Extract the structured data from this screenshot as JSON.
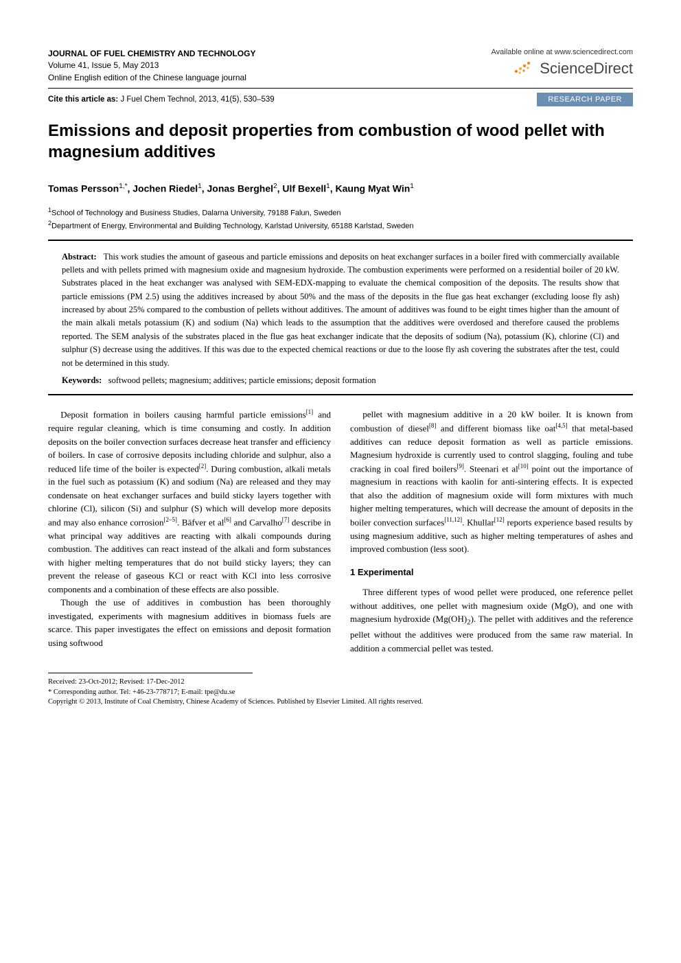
{
  "header": {
    "journal_title": "JOURNAL OF FUEL CHEMISTRY AND TECHNOLOGY",
    "volume_issue": "Volume 41, Issue 5, May 2013",
    "edition": "Online English edition of the Chinese language journal",
    "available": "Available online at www.sciencedirect.com",
    "sd_brand": "ScienceDirect",
    "cite_label": "Cite this article as:",
    "cite_text": " J Fuel Chem Technol, 2013, 41(5), 530–539",
    "badge": "RESEARCH PAPER"
  },
  "article": {
    "title": "Emissions and deposit properties from combustion of wood pellet with magnesium additives",
    "authors_html": "Tomas Persson<sup>1,*</sup>, Jochen Riedel<sup>1</sup>, Jonas Berghel<sup>2</sup>, Ulf Bexell<sup>1</sup>, Kaung Myat Win<sup>1</sup>",
    "affiliations": [
      {
        "num": "1",
        "text": "School of Technology and Business Studies, Dalarna University, 79188 Falun, Sweden"
      },
      {
        "num": "2",
        "text": "Department of Energy, Environmental and Building Technology, Karlstad University, 65188 Karlstad, Sweden"
      }
    ]
  },
  "abstract": {
    "label": "Abstract:",
    "text": "This work studies the amount of gaseous and particle emissions and deposits on heat exchanger surfaces in a boiler fired with commercially available pellets and with pellets primed with magnesium oxide and magnesium hydroxide. The combustion experiments were performed on a residential boiler of 20 kW. Substrates placed in the heat exchanger was analysed with SEM-EDX-mapping to evaluate the chemical composition of the deposits. The results show that particle emissions (PM 2.5) using the additives increased by about 50% and the mass of the deposits in the flue gas heat exchanger (excluding loose fly ash) increased by about 25% compared to the combustion of pellets without additives. The amount of additives was found to be eight times higher than the amount of the main alkali metals potassium (K) and sodium (Na) which leads to the assumption that the additives were overdosed and therefore caused the problems reported. The SEM analysis of the substrates placed in the flue gas heat exchanger indicate that the deposits of sodium (Na), potassium (K), chlorine (Cl) and sulphur (S) decrease using the additives. If this was due to the expected chemical reactions or due to the loose fly ash covering the substrates after the test, could not be determined in this study.",
    "kw_label": "Keywords:",
    "kw_text": "softwood pellets; magnesium; additives; particle emissions; deposit formation"
  },
  "body": {
    "left": {
      "p1": "Deposit formation in boilers causing harmful particle emissions[1] and require regular cleaning, which is time consuming and costly. In addition deposits on the boiler convection surfaces decrease heat transfer and efficiency of boilers. In case of corrosive deposits including chloride and sulphur, also a reduced life time of the boiler is expected[2]. During combustion, alkali metals in the fuel such as potassium (K) and sodium (Na) are released and they may condensate on heat exchanger surfaces and build sticky layers together with chlorine (Cl), silicon (Si) and sulphur (S) which will develop more deposits and may also enhance corrosion[2–5]. Bäfver et al[6] and Carvalho[7] describe in what principal way additives are reacting with alkali compounds during combustion. The additives can react instead of the alkali and form substances with higher melting temperatures that do not build sticky layers; they can prevent the release of gaseous KCl or react with KCl into less corrosive components and a combination of these effects are also possible.",
      "p2": "Though the use of additives in combustion has been thoroughly investigated, experiments with magnesium additives in biomass fuels are scarce. This paper investigates the effect on emissions and deposit formation using softwood"
    },
    "right": {
      "p1": "pellet with magnesium additive in a 20 kW boiler. It is known from combustion of diesel[8] and different biomass like oat[4,5] that metal-based additives can reduce deposit formation as well as particle emissions. Magnesium hydroxide is currently used to control slagging, fouling and tube cracking in coal fired boilers[9]. Steenari et al[10] point out the importance of magnesium in reactions with kaolin for anti-sintering effects. It is expected that also the addition of magnesium oxide will form mixtures with much higher melting temperatures, which will decrease the amount of deposits in the boiler convection surfaces[11,12]. Khullar[12] reports experience based results by using magnesium additive, such as higher melting temperatures of ashes and improved combustion (less soot).",
      "section": "1  Experimental",
      "p2": "Three different types of wood pellet were produced, one reference pellet without additives, one pellet with magnesium oxide (MgO), and one with magnesium hydroxide (Mg(OH)2). The pellet with additives and the reference pellet without the additives were produced from the same raw material. In addition a commercial pellet was tested."
    }
  },
  "footer": {
    "received": "Received: 23-Oct-2012; Revised: 17-Dec-2012",
    "corresponding": "* Corresponding author. Tel: +46-23-778717; E-mail: tpe@du.se",
    "copyright": "Copyright © 2013, Institute of Coal Chemistry, Chinese Academy of Sciences. Published by Elsevier Limited. All rights reserved."
  },
  "colors": {
    "badge_bg": "#6b8fb3",
    "sd_orange": "#f58220",
    "sd_yellow": "#fbb040",
    "sd_gray": "#555555"
  }
}
